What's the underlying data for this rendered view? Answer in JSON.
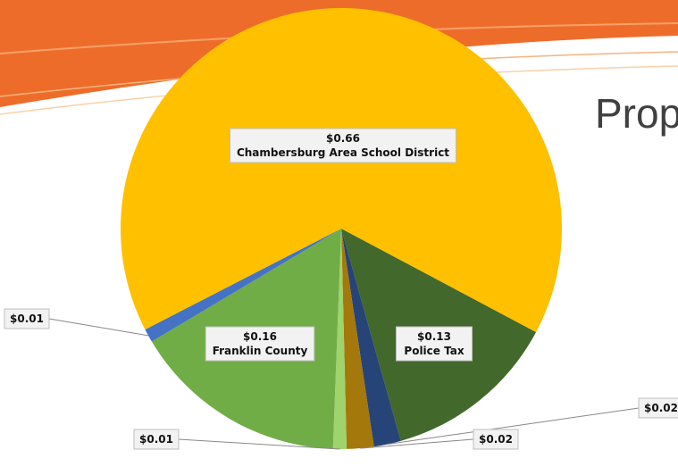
{
  "slide_title": "Prop",
  "chart_data": {
    "type": "pie",
    "categories": [
      "Police Tax",
      null,
      null,
      null,
      "Franklin County",
      null,
      "Chambersburg Area School District"
    ],
    "values": [
      0.13,
      0.02,
      0.02,
      0.01,
      0.16,
      0.01,
      0.66
    ],
    "value_labels": [
      "$0.13",
      "$0.02",
      "$0.02",
      "$0.01",
      "$0.16",
      "$0.01",
      "$0.66"
    ],
    "colors": [
      "#43682b",
      "#264478",
      "#a5780b",
      "#9fd36b",
      "#70ad47",
      "#4472c4",
      "#ffc000"
    ]
  }
}
